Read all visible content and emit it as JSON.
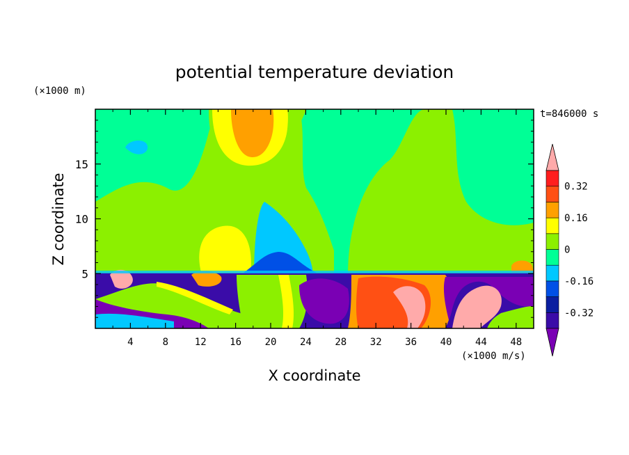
{
  "chart_data": {
    "type": "heatmap",
    "title": "potential temperature deviation",
    "xlabel": "X coordinate",
    "ylabel": "Z coordinate",
    "x_unit": "(×1000 m/s)",
    "y_unit": "(×1000 m)",
    "time_label": "t=846000 s",
    "xlim": [
      0,
      50
    ],
    "ylim": [
      0,
      20
    ],
    "x_ticks": [
      4,
      8,
      12,
      16,
      20,
      24,
      28,
      32,
      36,
      40,
      44,
      48
    ],
    "y_ticks": [
      5,
      10,
      15
    ],
    "colorbar": {
      "levels": [
        -0.4,
        -0.32,
        -0.24,
        -0.16,
        -0.08,
        0,
        0.08,
        0.16,
        0.24,
        0.32,
        0.4
      ],
      "colors": [
        "#7a00b4",
        "#3a0ca8",
        "#0a1ea0",
        "#0050e6",
        "#00c8ff",
        "#00ff96",
        "#8cf000",
        "#ffff00",
        "#ffa000",
        "#ff5014",
        "#ff1e1e",
        "#ffaaaa"
      ],
      "tick_labels": [
        "0.32",
        "0.16",
        "0",
        "-0.16",
        "-0.32"
      ],
      "tick_values": [
        0.32,
        0.16,
        0,
        -0.16,
        -0.32
      ]
    }
  }
}
